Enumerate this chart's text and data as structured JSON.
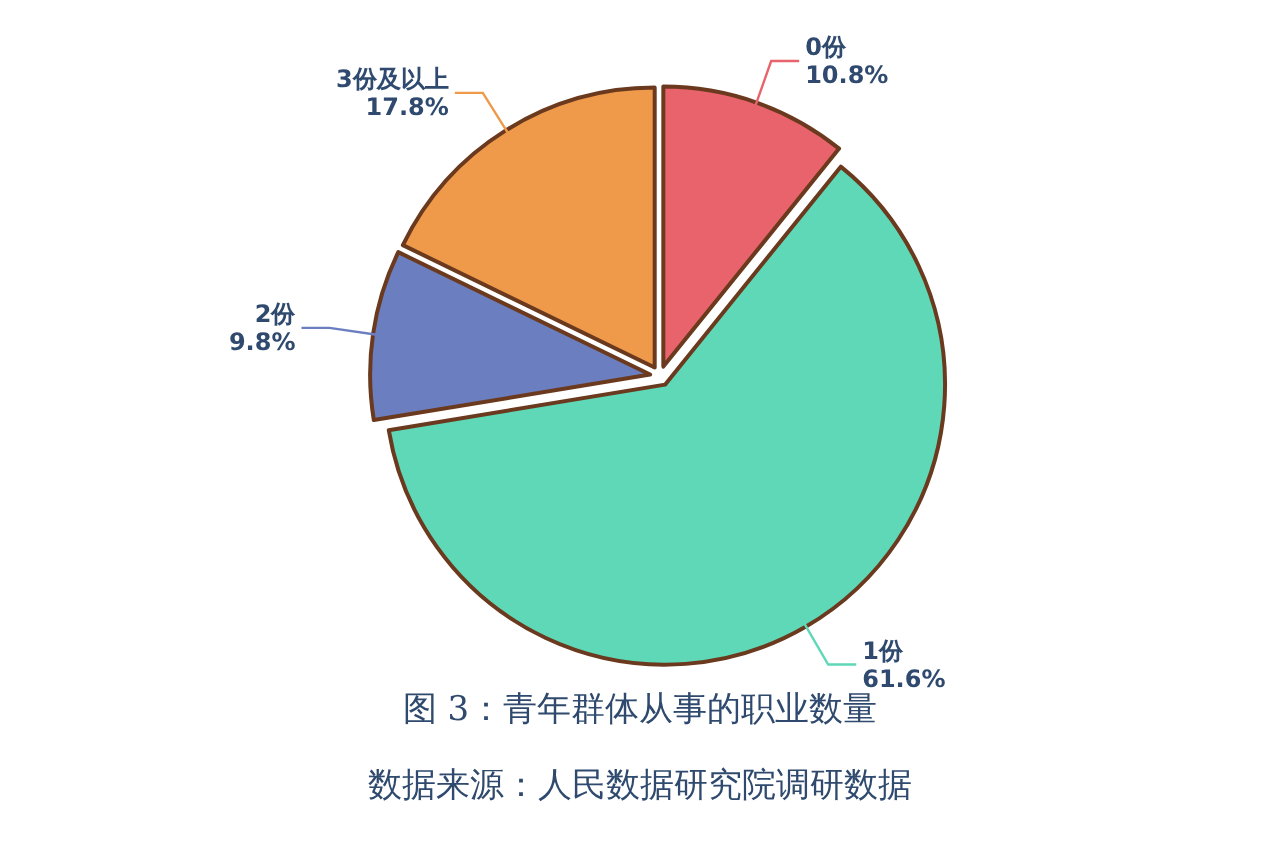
{
  "chart_data": {
    "type": "pie",
    "title": "图 3：青年群体从事的职业数量",
    "categories": [
      "0份",
      "1份",
      "2份",
      "3份及以上"
    ],
    "values": [
      10.8,
      61.6,
      9.8,
      17.8
    ],
    "colors": [
      "#e8636b",
      "#5fd8b8",
      "#6b7fc0",
      "#ee9a4a"
    ],
    "value_labels": [
      "10.8%",
      "61.6%",
      "9.8%",
      "17.8%"
    ],
    "annotations": [
      "数据来源：人民数据研究院调研数据"
    ]
  }
}
